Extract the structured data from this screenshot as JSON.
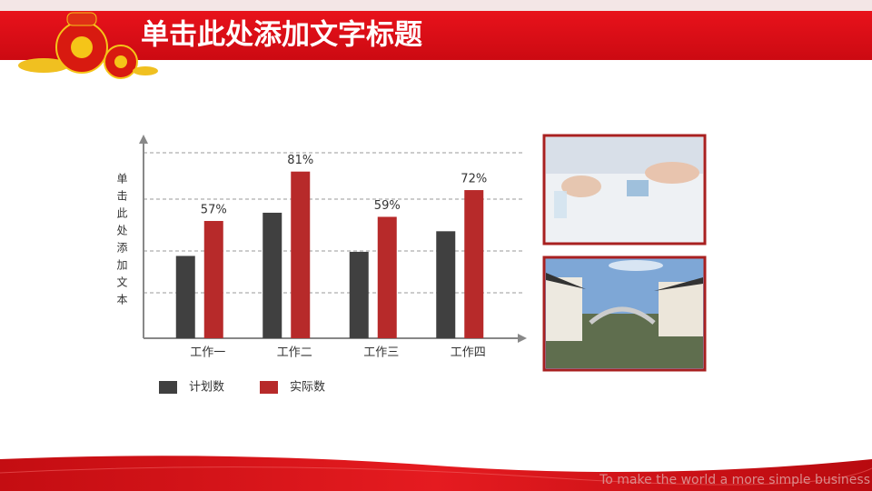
{
  "header": {
    "title": "单击此处添加文字标题"
  },
  "chart_data": {
    "type": "bar",
    "y_label": "单击此处添加文本",
    "categories": [
      "工作一",
      "工作二",
      "工作三",
      "工作四"
    ],
    "series": [
      {
        "name": "计划数",
        "color": "#404040",
        "values": [
          40,
          61,
          42,
          52
        ]
      },
      {
        "name": "实际数",
        "color": "#b72a2a",
        "values": [
          57,
          81,
          59,
          72
        ],
        "value_labels": [
          "57%",
          "81%",
          "59%",
          "72%"
        ]
      }
    ],
    "ylim": [
      0,
      100
    ]
  },
  "footer": {
    "slogan": "To make the world a more simple business"
  }
}
